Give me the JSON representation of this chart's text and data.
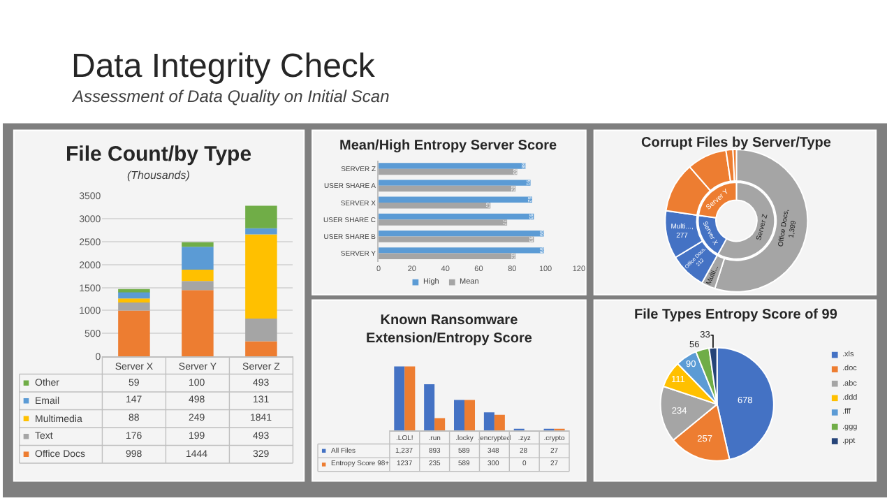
{
  "chart_data": [
    {
      "type": "other",
      "title": "Data Integrity Check",
      "subtitle": "Assessment of Data Quality on Initial Scan"
    },
    {
      "type": "bar",
      "title": "File Count/by Type",
      "subtitle": "(Thousands)",
      "categories": [
        "Server X",
        "Server Y",
        "Server Z"
      ],
      "stacked": true,
      "ylim": [
        0,
        3500
      ],
      "yticks": [
        0,
        500,
        1000,
        1500,
        2000,
        2500,
        3000,
        3500
      ],
      "grid": "y",
      "data_labels": true,
      "legend": "bottom left",
      "series": [
        {
          "name": "Office Docs",
          "color": "#ed7d31",
          "values": [
            998,
            1444,
            329
          ]
        },
        {
          "name": "Text",
          "color": "#a5a5a5",
          "values": [
            176,
            199,
            493
          ]
        },
        {
          "name": "Multimedia",
          "color": "#ffc000",
          "values": [
            88,
            249,
            1841
          ]
        },
        {
          "name": "Email",
          "color": "#5b9bd5",
          "values": [
            147,
            498,
            131
          ]
        },
        {
          "name": "Other",
          "color": "#70ad47",
          "values": [
            59,
            100,
            493
          ]
        }
      ]
    },
    {
      "type": "bar",
      "title": "Mean/High Entropy Server Score",
      "orientation": "horizontal",
      "categories": [
        "SERVER Z",
        "USER SHARE A",
        "SERVER X",
        "USER SHARE C",
        "USER SHARE B",
        "SERVER Y"
      ],
      "xlim": [
        0,
        120
      ],
      "xticks": [
        0,
        20,
        40,
        60,
        80,
        100,
        120
      ],
      "data_labels": true,
      "legend": "bottom",
      "series": [
        {
          "name": "High",
          "color": "#5b9bd5",
          "values": [
            88,
            91,
            92,
            93,
            99,
            99
          ]
        },
        {
          "name": "Mean",
          "color": "#a5a5a5",
          "values": [
            83,
            82,
            67,
            77,
            93,
            82
          ]
        }
      ]
    },
    {
      "type": "donut",
      "title": "Corrupt Files by Server/Type",
      "series": [
        {
          "values": [
            58.0,
            19.2,
            22.8
          ],
          "colors": [
            "#a5a5a5",
            "#4472c4",
            "#ed7d31"
          ],
          "value_labels": [
            "Server Z",
            "Server X",
            "Server Y"
          ]
        },
        {
          "values": [
            1399,
            80,
            212,
            277,
            290,
            230,
            40,
            20
          ],
          "colors": [
            "#a5a5a5",
            "#a5a5a5",
            "#4472c4",
            "#4472c4",
            "#ed7d31",
            "#ed7d31",
            "#ed7d31",
            "#ed7d31"
          ],
          "value_labels": [
            "Office Docs,\n1,399",
            "Multi...",
            "Office Docs,\n212",
            "Multi...,\n277",
            null,
            null,
            null,
            null
          ]
        }
      ]
    },
    {
      "type": "bar",
      "title": "Known Ransomware\nExtension/Entropy Score",
      "categories": [
        ".LOL!",
        ".run",
        ".locky",
        ".encrypted",
        ".zyz",
        ".crypto"
      ],
      "legend": "bottom left",
      "series": [
        {
          "name": "All Files",
          "color": "#4472c4",
          "values": [
            1237,
            893,
            589,
            348,
            28,
            27
          ],
          "value_labels": [
            "1,237",
            "893",
            "589",
            "348",
            "28",
            "27"
          ]
        },
        {
          "name": "Entropy Score 98+",
          "color": "#ed7d31",
          "values": [
            1237,
            235,
            589,
            300,
            0,
            27
          ],
          "value_labels": [
            "1237",
            "235",
            "589",
            "300",
            "0",
            "27"
          ]
        }
      ]
    },
    {
      "type": "pie",
      "title": "File Types Entropy Score of 99",
      "categories": [
        ".xls",
        ".doc",
        ".abc",
        ".ddd",
        ".fff",
        ".ggg",
        ".ppt"
      ],
      "values": [
        678,
        257,
        234,
        111,
        90,
        56,
        33
      ],
      "colors": [
        "#4472c4",
        "#ed7d31",
        "#a5a5a5",
        "#ffc000",
        "#5b9bd5",
        "#70ad47",
        "#264478"
      ],
      "data_labels": true,
      "legend": "right"
    }
  ]
}
